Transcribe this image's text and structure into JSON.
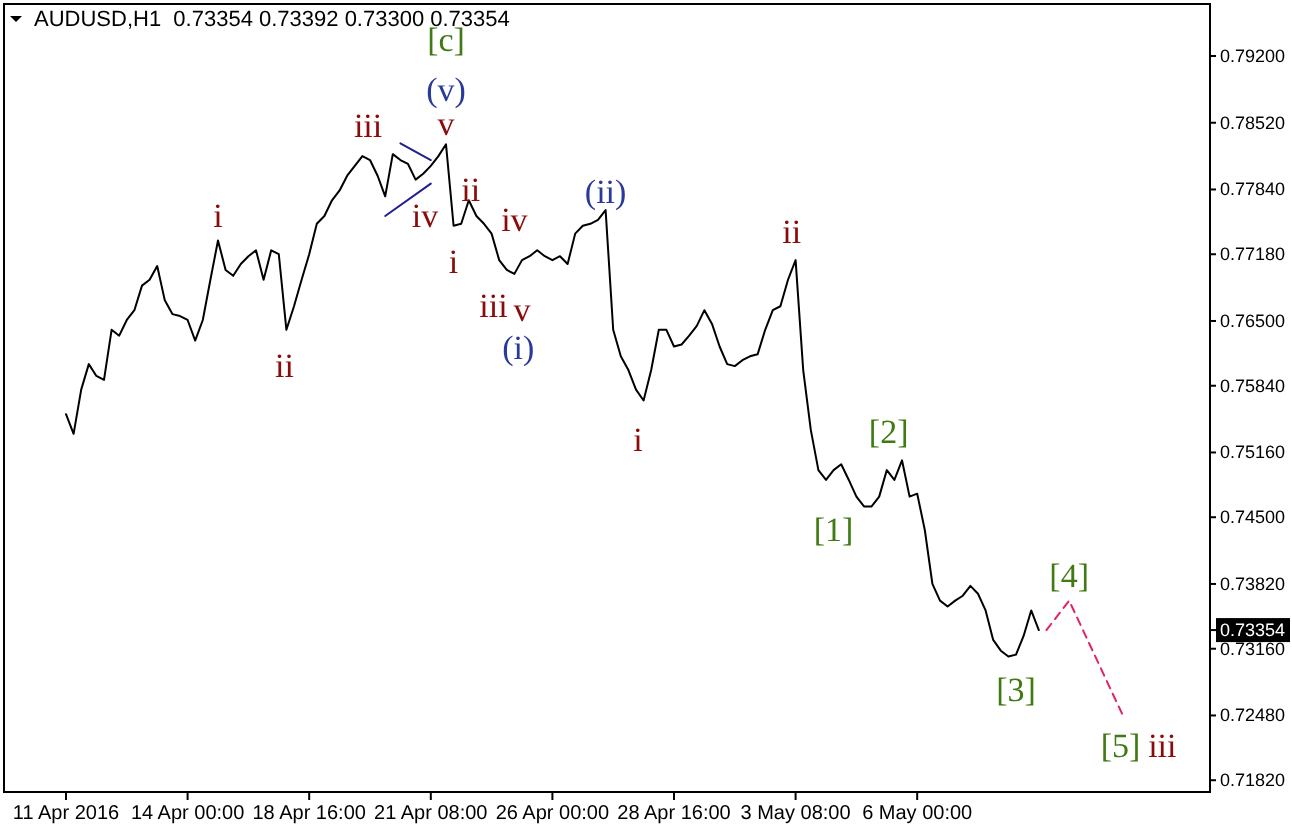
{
  "chart_data": {
    "type": "line",
    "title": "AUDUSD,H1  0.73354 0.73392 0.73300 0.73354",
    "categories": [
      "11 Apr 2016",
      null,
      null,
      null,
      null,
      null,
      null,
      null,
      null,
      null,
      null,
      null,
      null,
      null,
      null,
      null,
      "14 Apr 00:00",
      null,
      null,
      null,
      null,
      null,
      null,
      null,
      null,
      null,
      null,
      null,
      null,
      null,
      null,
      null,
      "18 Apr 16:00",
      null,
      null,
      null,
      null,
      null,
      null,
      null,
      null,
      null,
      null,
      null,
      null,
      null,
      null,
      null,
      "21 Apr 08:00",
      null,
      null,
      null,
      null,
      null,
      null,
      null,
      null,
      null,
      null,
      null,
      null,
      null,
      null,
      null,
      "26 Apr 00:00",
      null,
      null,
      null,
      null,
      null,
      null,
      null,
      null,
      null,
      null,
      null,
      null,
      null,
      null,
      null,
      "28 Apr 16:00",
      null,
      null,
      null,
      null,
      null,
      null,
      null,
      null,
      null,
      null,
      null,
      null,
      null,
      null,
      null,
      "3 May 08:00",
      null,
      null,
      null,
      null,
      null,
      null,
      null,
      null,
      null,
      null,
      null,
      null,
      null,
      null,
      null,
      "6 May 00:00",
      null,
      null,
      null,
      null,
      null,
      null,
      null,
      null,
      null,
      null,
      null,
      null,
      null,
      null,
      null,
      null,
      null,
      null,
      null,
      null,
      null,
      null,
      null,
      null,
      null,
      null,
      null,
      null,
      null,
      null,
      null,
      null,
      null,
      null,
      null,
      null,
      null,
      null
    ],
    "series": [
      {
        "color": "#000000",
        "values": [
          0.7555,
          0.7535,
          0.758,
          0.7606,
          0.7594,
          0.759,
          0.7641,
          0.7635,
          0.7651,
          0.7661,
          0.7686,
          0.7692,
          0.7706,
          0.7671,
          0.7657,
          0.7655,
          0.7651,
          0.763,
          0.7651,
          0.7692,
          0.7732,
          0.7702,
          0.7696,
          0.7708,
          0.7716,
          0.7722,
          0.7692,
          0.7722,
          0.7718,
          0.7641,
          0.7665,
          0.7692,
          0.7718,
          0.7749,
          0.7757,
          0.7773,
          0.7783,
          0.7798,
          0.7808,
          0.7818,
          0.7814,
          0.7798,
          0.7777,
          0.782,
          0.7814,
          0.781,
          0.7794,
          0.78,
          0.7808,
          0.7818,
          0.783,
          0.7747,
          0.7749,
          0.7773,
          0.7757,
          0.7749,
          0.7739,
          0.7712,
          0.7702,
          0.7698,
          0.7712,
          0.7716,
          0.7722,
          0.7716,
          0.7712,
          0.7716,
          0.7708,
          0.7739,
          0.7747,
          0.7749,
          0.7753,
          0.7763,
          0.7641,
          0.7614,
          0.76,
          0.758,
          0.7569,
          0.76,
          0.7641,
          0.7641,
          0.7624,
          0.7626,
          0.7635,
          0.7645,
          0.7661,
          0.7647,
          0.7624,
          0.7606,
          0.7604,
          0.761,
          0.7614,
          0.7616,
          0.7641,
          0.7661,
          0.7665,
          0.7692,
          0.7712,
          0.76,
          0.7539,
          0.7498,
          0.7488,
          0.7498,
          0.7504,
          0.7488,
          0.7471,
          0.7461,
          0.7461,
          0.7471,
          0.7498,
          0.7488,
          0.7508,
          0.7471,
          0.7474,
          0.7437,
          0.7382,
          0.7365,
          0.7359,
          0.7365,
          0.737,
          0.738,
          0.7372,
          0.7355,
          0.7325,
          0.7314,
          0.7308,
          0.731,
          0.7329,
          0.7355,
          0.7335,
          null,
          null,
          null,
          null,
          null,
          null,
          null,
          null,
          null,
          null,
          null,
          null,
          null,
          null,
          null,
          null,
          null,
          null,
          null,
          null,
          null,
          null
        ]
      },
      {
        "color": "#e0245e",
        "line_style": "dashed",
        "values": [
          null,
          null,
          null,
          null,
          null,
          null,
          null,
          null,
          null,
          null,
          null,
          null,
          null,
          null,
          null,
          null,
          null,
          null,
          null,
          null,
          null,
          null,
          null,
          null,
          null,
          null,
          null,
          null,
          null,
          null,
          null,
          null,
          null,
          null,
          null,
          null,
          null,
          null,
          null,
          null,
          null,
          null,
          null,
          null,
          null,
          null,
          null,
          null,
          null,
          null,
          null,
          null,
          null,
          null,
          null,
          null,
          null,
          null,
          null,
          null,
          null,
          null,
          null,
          null,
          null,
          null,
          null,
          null,
          null,
          null,
          null,
          null,
          null,
          null,
          null,
          null,
          null,
          null,
          null,
          null,
          null,
          null,
          null,
          null,
          null,
          null,
          null,
          null,
          null,
          null,
          null,
          null,
          null,
          null,
          null,
          null,
          null,
          null,
          null,
          null,
          null,
          null,
          null,
          null,
          null,
          null,
          null,
          null,
          null,
          null,
          null,
          null,
          null,
          null,
          null,
          null,
          null,
          null,
          null,
          null,
          null,
          null,
          null,
          null,
          null,
          null,
          null,
          null,
          null,
          0.7335,
          null,
          null,
          0.7365,
          null,
          null,
          null,
          null,
          null,
          null,
          0.7249,
          null,
          null,
          null,
          null,
          null,
          null,
          null,
          null,
          null,
          null,
          null
        ]
      },
      {
        "color": "#1f1f8f",
        "values": [
          null,
          null,
          null,
          null,
          null,
          null,
          null,
          null,
          null,
          null,
          null,
          null,
          null,
          null,
          null,
          null,
          null,
          null,
          null,
          null,
          null,
          null,
          null,
          null,
          null,
          null,
          null,
          null,
          null,
          null,
          null,
          null,
          null,
          null,
          null,
          null,
          null,
          null,
          null,
          null,
          null,
          null,
          null,
          null,
          0.7831,
          null,
          null,
          null,
          0.7814,
          null,
          null,
          null,
          null,
          null,
          null,
          null,
          null,
          null,
          null,
          null,
          null,
          null,
          null,
          null,
          null,
          null,
          null,
          null,
          null,
          null,
          null,
          null,
          null,
          null,
          null,
          null,
          null,
          null,
          null,
          null,
          null,
          null,
          null,
          null,
          null,
          null,
          null,
          null,
          null,
          null,
          null,
          null,
          null,
          null,
          null,
          null,
          null,
          null,
          null,
          null,
          null,
          null,
          null,
          null,
          null,
          null,
          null,
          null,
          null,
          null,
          null,
          null,
          null,
          null,
          null,
          null,
          null,
          null,
          null,
          null,
          null,
          null,
          null,
          null,
          null,
          null,
          null,
          null,
          null,
          null,
          null,
          null,
          null,
          null,
          null,
          null,
          null,
          null,
          null,
          null,
          null,
          null,
          null,
          null,
          null,
          null,
          null,
          null,
          null,
          null,
          null
        ]
      },
      {
        "color": "#1f1f8f",
        "values": [
          null,
          null,
          null,
          null,
          null,
          null,
          null,
          null,
          null,
          null,
          null,
          null,
          null,
          null,
          null,
          null,
          null,
          null,
          null,
          null,
          null,
          null,
          null,
          null,
          null,
          null,
          null,
          null,
          null,
          null,
          null,
          null,
          null,
          null,
          null,
          null,
          null,
          null,
          null,
          null,
          null,
          null,
          0.7757,
          null,
          null,
          null,
          null,
          null,
          0.779,
          null,
          null,
          null,
          null,
          null,
          null,
          null,
          null,
          null,
          null,
          null,
          null,
          null,
          null,
          null,
          null,
          null,
          null,
          null,
          null,
          null,
          null,
          null,
          null,
          null,
          null,
          null,
          null,
          null,
          null,
          null,
          null,
          null,
          null,
          null,
          null,
          null,
          null,
          null,
          null,
          null,
          null,
          null,
          null,
          null,
          null,
          null,
          null,
          null,
          null,
          null,
          null,
          null,
          null,
          null,
          null,
          null,
          null,
          null,
          null,
          null,
          null,
          null,
          null,
          null,
          null,
          null,
          null,
          null,
          null,
          null,
          null,
          null,
          null,
          null,
          null,
          null,
          null,
          null,
          null,
          null,
          null,
          null,
          null,
          null,
          null,
          null,
          null,
          null,
          null,
          null,
          null,
          null,
          null,
          null,
          null,
          null,
          null,
          null,
          null,
          null,
          null
        ]
      }
    ],
    "ylim": [
      0.717,
      0.7973
    ],
    "yticks": [
      {
        "value": 0.792,
        "label": "0.79200"
      },
      {
        "value": 0.7852,
        "label": "0.78520"
      },
      {
        "value": 0.7784,
        "label": "0.77840"
      },
      {
        "value": 0.7718,
        "label": "0.77180"
      },
      {
        "value": 0.765,
        "label": "0.76500"
      },
      {
        "value": 0.7584,
        "label": "0.75840"
      },
      {
        "value": 0.7516,
        "label": "0.75160"
      },
      {
        "value": 0.745,
        "label": "0.74500"
      },
      {
        "value": 0.7382,
        "label": "0.73820"
      },
      {
        "value": 0.7316,
        "label": "0.73160"
      },
      {
        "value": 0.7248,
        "label": "0.72480"
      },
      {
        "value": 0.7182,
        "label": "0.71820"
      }
    ],
    "annotations": [
      "[c]",
      "(v)",
      "v",
      "iii",
      "iv",
      "i",
      "ii",
      "i",
      "ii",
      "iv",
      "iii",
      "v",
      "(i)",
      "(ii)",
      "i",
      "ii",
      "[1]",
      "[2]",
      "[3]",
      "[4]",
      {
        "text": "[5]",
        "y": 0.7249
      },
      "iii",
      "0.73354"
    ]
  }
}
